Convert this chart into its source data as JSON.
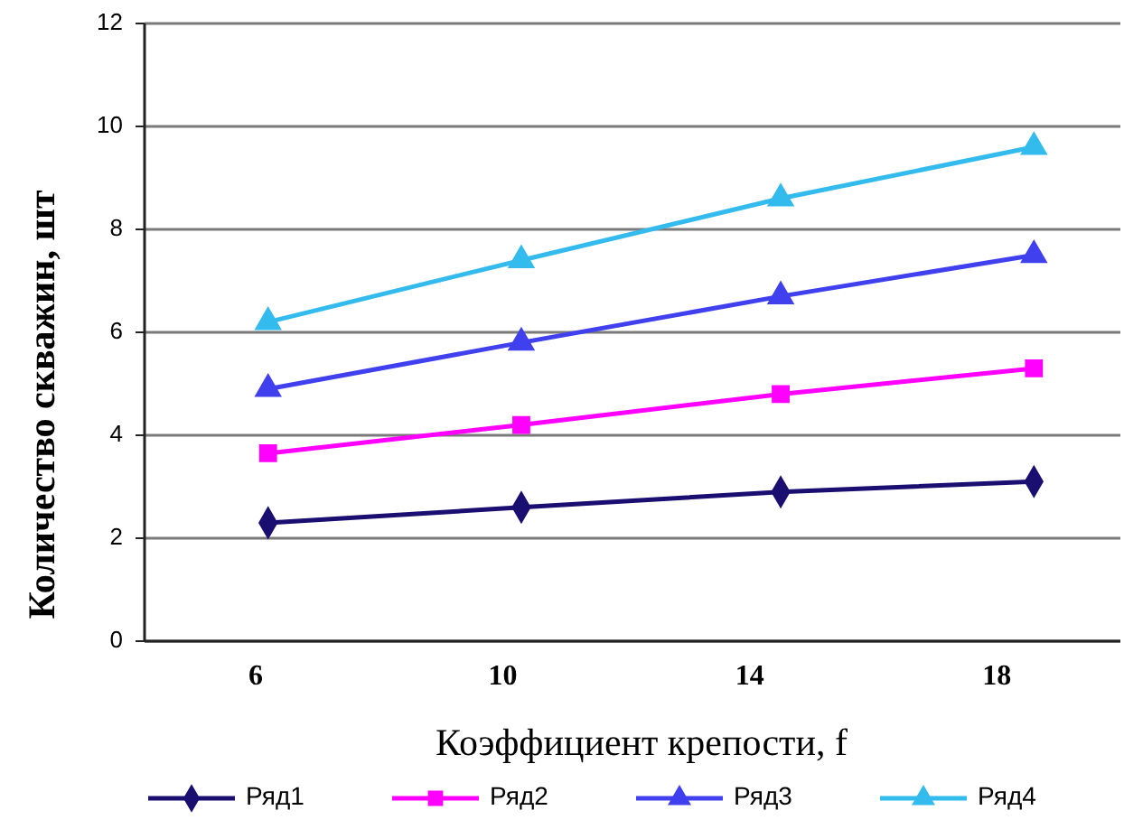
{
  "chart_data": {
    "type": "line",
    "xlabel": "Коэффициент крепости, f",
    "ylabel": "Количество скважин, шт",
    "x": [
      6.2,
      10.3,
      14.5,
      18.6
    ],
    "xlim": [
      4.2,
      20
    ],
    "xticks": [
      6,
      10,
      14,
      18
    ],
    "ylim": [
      0,
      12
    ],
    "yticks": [
      0,
      2,
      4,
      6,
      8,
      10,
      12
    ],
    "grid": "y",
    "legend": "bottom",
    "series": [
      {
        "name": "Ряд1",
        "color": "#1a0f70",
        "marker": "diamond",
        "values": [
          2.3,
          2.6,
          2.9,
          3.1
        ]
      },
      {
        "name": "Ряд2",
        "color": "#ff00ff",
        "marker": "square",
        "values": [
          3.65,
          4.2,
          4.8,
          5.3
        ]
      },
      {
        "name": "Ряд3",
        "color": "#4040ee",
        "marker": "triangle",
        "values": [
          4.9,
          5.8,
          6.7,
          7.5
        ]
      },
      {
        "name": "Ряд4",
        "color": "#33bbee",
        "marker": "triangle",
        "values": [
          6.2,
          7.4,
          8.6,
          9.6
        ]
      }
    ]
  }
}
